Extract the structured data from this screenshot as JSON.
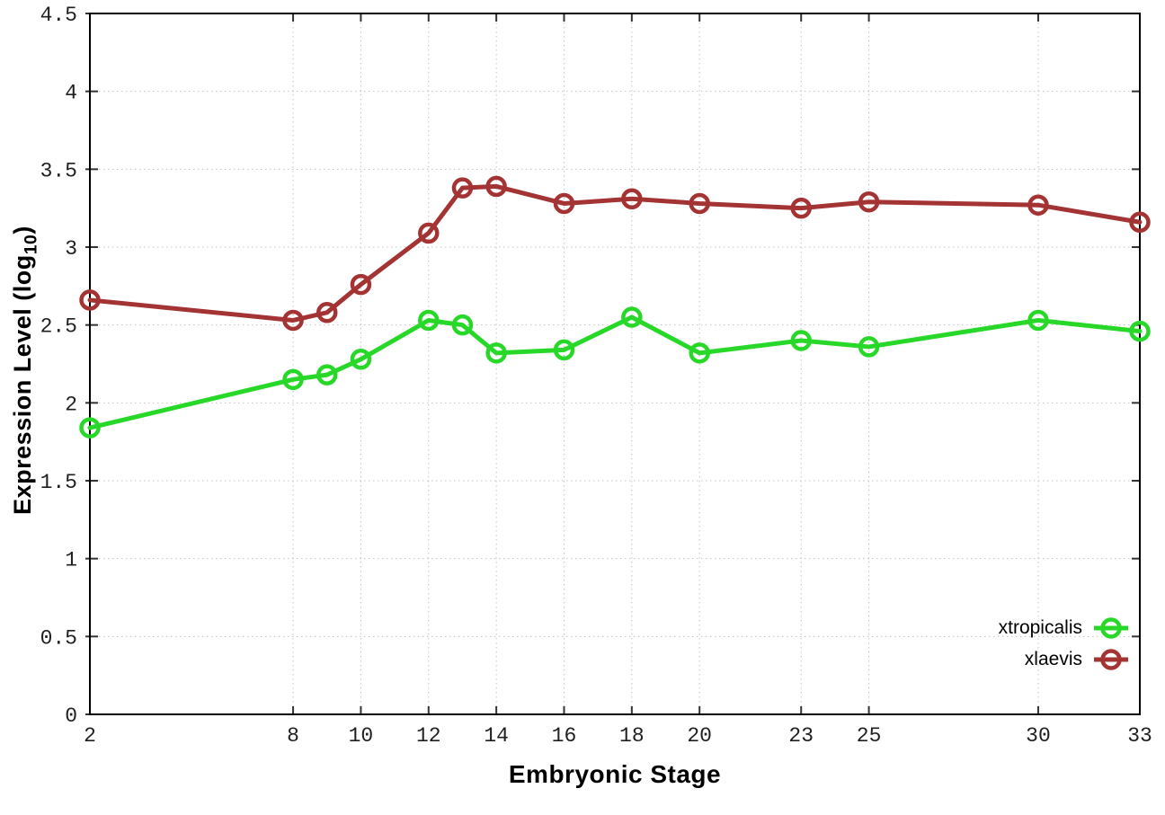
{
  "chart_data": {
    "type": "line",
    "x": [
      2,
      8,
      9,
      10,
      12,
      13,
      14,
      16,
      18,
      20,
      23,
      25,
      30,
      33
    ],
    "series": [
      {
        "name": "xtropicalis",
        "color": "#28d828",
        "values": [
          1.84,
          2.15,
          2.18,
          2.28,
          2.53,
          2.5,
          2.32,
          2.34,
          2.55,
          2.32,
          2.4,
          2.36,
          2.53,
          2.46
        ]
      },
      {
        "name": "xlaevis",
        "color": "#a43333",
        "values": [
          2.66,
          2.53,
          2.58,
          2.76,
          3.09,
          3.38,
          3.39,
          3.28,
          3.31,
          3.28,
          3.25,
          3.29,
          3.27,
          3.16
        ]
      }
    ],
    "title": "",
    "xlabel": "Embryonic Stage",
    "ylabel": "Expression Level (log10)",
    "ylabel_parts": {
      "prefix": "Expression Level (log",
      "sub": "10",
      "suffix": ")"
    },
    "xticks": {
      "values": [
        2,
        8,
        10,
        12,
        14,
        16,
        18,
        20,
        23,
        25,
        30,
        33
      ],
      "labels": [
        "2",
        "8",
        "10",
        "12",
        "14",
        "16",
        "18",
        "20",
        "23",
        "25",
        "30",
        "33"
      ]
    },
    "yticks": {
      "values": [
        0,
        0.5,
        1,
        1.5,
        2,
        2.5,
        3,
        3.5,
        4,
        4.5
      ],
      "labels": [
        "0",
        "0.5",
        "1",
        "1.5",
        "2",
        "2.5",
        "3",
        "3.5",
        "4",
        "4.5"
      ]
    },
    "xlim": [
      2,
      33
    ],
    "ylim": [
      0,
      4.5
    ],
    "grid": true,
    "legend_position": "inside-bottom-right",
    "style": {
      "axis_color": "#000000",
      "grid_color": "#c4c4c4",
      "tick_color": "#333333",
      "tick_label_color": "#1f1f1f",
      "line_width": 5,
      "marker": "open-circle",
      "marker_radius": 9.5
    }
  }
}
